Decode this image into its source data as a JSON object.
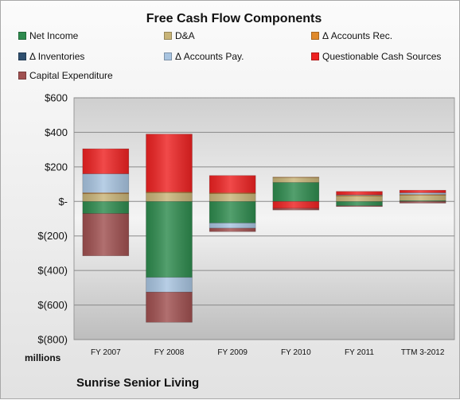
{
  "chart_data": {
    "type": "bar",
    "stacked": true,
    "title": "Free Cash Flow Components",
    "xlabel": "",
    "ylabel": "",
    "units_label": "millions",
    "categories": [
      "FY 2007",
      "FY 2008",
      "FY 2009",
      "FY 2010",
      "FY 2011",
      "TTM 3-2012"
    ],
    "ylim": [
      -800,
      600
    ],
    "yticks": [
      600,
      400,
      200,
      0,
      -200,
      -400,
      -600,
      -800
    ],
    "ytick_labels": [
      "$600",
      "$400",
      "$200",
      "$-",
      "$(200)",
      "$(400)",
      "$(600)",
      "$(800)"
    ],
    "grid": true,
    "legend_position": "top",
    "series": [
      {
        "name": "Net Income",
        "color": "#2e8b4e",
        "values": [
          -70,
          -440,
          -125,
          110,
          -25,
          5
        ]
      },
      {
        "name": "D&A",
        "color": "#c8b478",
        "values": [
          45,
          50,
          45,
          28,
          30,
          30
        ]
      },
      {
        "name": "Δ Accounts Rec.",
        "color": "#e08a2c",
        "values": [
          5,
          5,
          5,
          3,
          5,
          5
        ]
      },
      {
        "name": "Δ Inventories",
        "color": "#2f4f6f",
        "values": [
          0,
          0,
          0,
          0,
          0,
          0
        ]
      },
      {
        "name": "Δ Accounts Pay.",
        "color": "#a8c4e0",
        "values": [
          110,
          -85,
          -30,
          0,
          3,
          10
        ]
      },
      {
        "name": "Questionable Cash Sources",
        "color": "#ee2222",
        "values": [
          145,
          335,
          100,
          -40,
          20,
          15
        ]
      },
      {
        "name": "Capital Expenditure",
        "color": "#a05050",
        "values": [
          -245,
          -175,
          -20,
          -10,
          -5,
          -10
        ]
      }
    ]
  },
  "brand_label": "Sunrise Senior Living"
}
